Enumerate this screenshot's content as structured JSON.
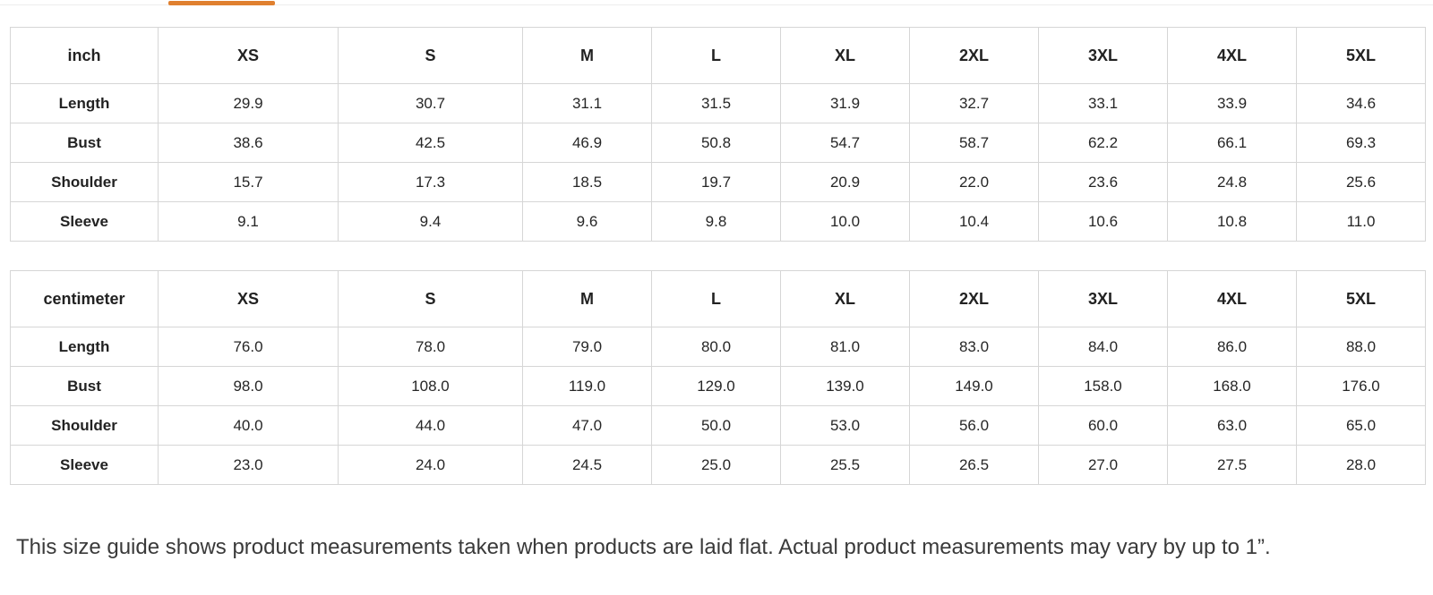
{
  "theme": {
    "accent": "#e0802f",
    "tab_divider": "#ededed",
    "table_border": "#d6d6d6",
    "table_text": "#262626",
    "note_text": "#3a3a3a",
    "background": "#ffffff"
  },
  "size_guide": {
    "tables": [
      {
        "unit_label": "inch",
        "columns": [
          "XS",
          "S",
          "M",
          "L",
          "XL",
          "2XL",
          "3XL",
          "4XL",
          "5XL"
        ],
        "rows": [
          {
            "label": "Length",
            "values": [
              "29.9",
              "30.7",
              "31.1",
              "31.5",
              "31.9",
              "32.7",
              "33.1",
              "33.9",
              "34.6"
            ]
          },
          {
            "label": "Bust",
            "values": [
              "38.6",
              "42.5",
              "46.9",
              "50.8",
              "54.7",
              "58.7",
              "62.2",
              "66.1",
              "69.3"
            ]
          },
          {
            "label": "Shoulder",
            "values": [
              "15.7",
              "17.3",
              "18.5",
              "19.7",
              "20.9",
              "22.0",
              "23.6",
              "24.8",
              "25.6"
            ]
          },
          {
            "label": "Sleeve",
            "values": [
              "9.1",
              "9.4",
              "9.6",
              "9.8",
              "10.0",
              "10.4",
              "10.6",
              "10.8",
              "11.0"
            ]
          }
        ]
      },
      {
        "unit_label": "centimeter",
        "columns": [
          "XS",
          "S",
          "M",
          "L",
          "XL",
          "2XL",
          "3XL",
          "4XL",
          "5XL"
        ],
        "rows": [
          {
            "label": "Length",
            "values": [
              "76.0",
              "78.0",
              "79.0",
              "80.0",
              "81.0",
              "83.0",
              "84.0",
              "86.0",
              "88.0"
            ]
          },
          {
            "label": "Bust",
            "values": [
              "98.0",
              "108.0",
              "119.0",
              "129.0",
              "139.0",
              "149.0",
              "158.0",
              "168.0",
              "176.0"
            ]
          },
          {
            "label": "Shoulder",
            "values": [
              "40.0",
              "44.0",
              "47.0",
              "50.0",
              "53.0",
              "56.0",
              "60.0",
              "63.0",
              "65.0"
            ]
          },
          {
            "label": "Sleeve",
            "values": [
              "23.0",
              "24.0",
              "24.5",
              "25.0",
              "25.5",
              "26.5",
              "27.0",
              "27.5",
              "28.0"
            ]
          }
        ]
      }
    ],
    "note": "This size guide shows product measurements taken when products are laid flat. Actual product measurements may vary by up to 1”."
  }
}
